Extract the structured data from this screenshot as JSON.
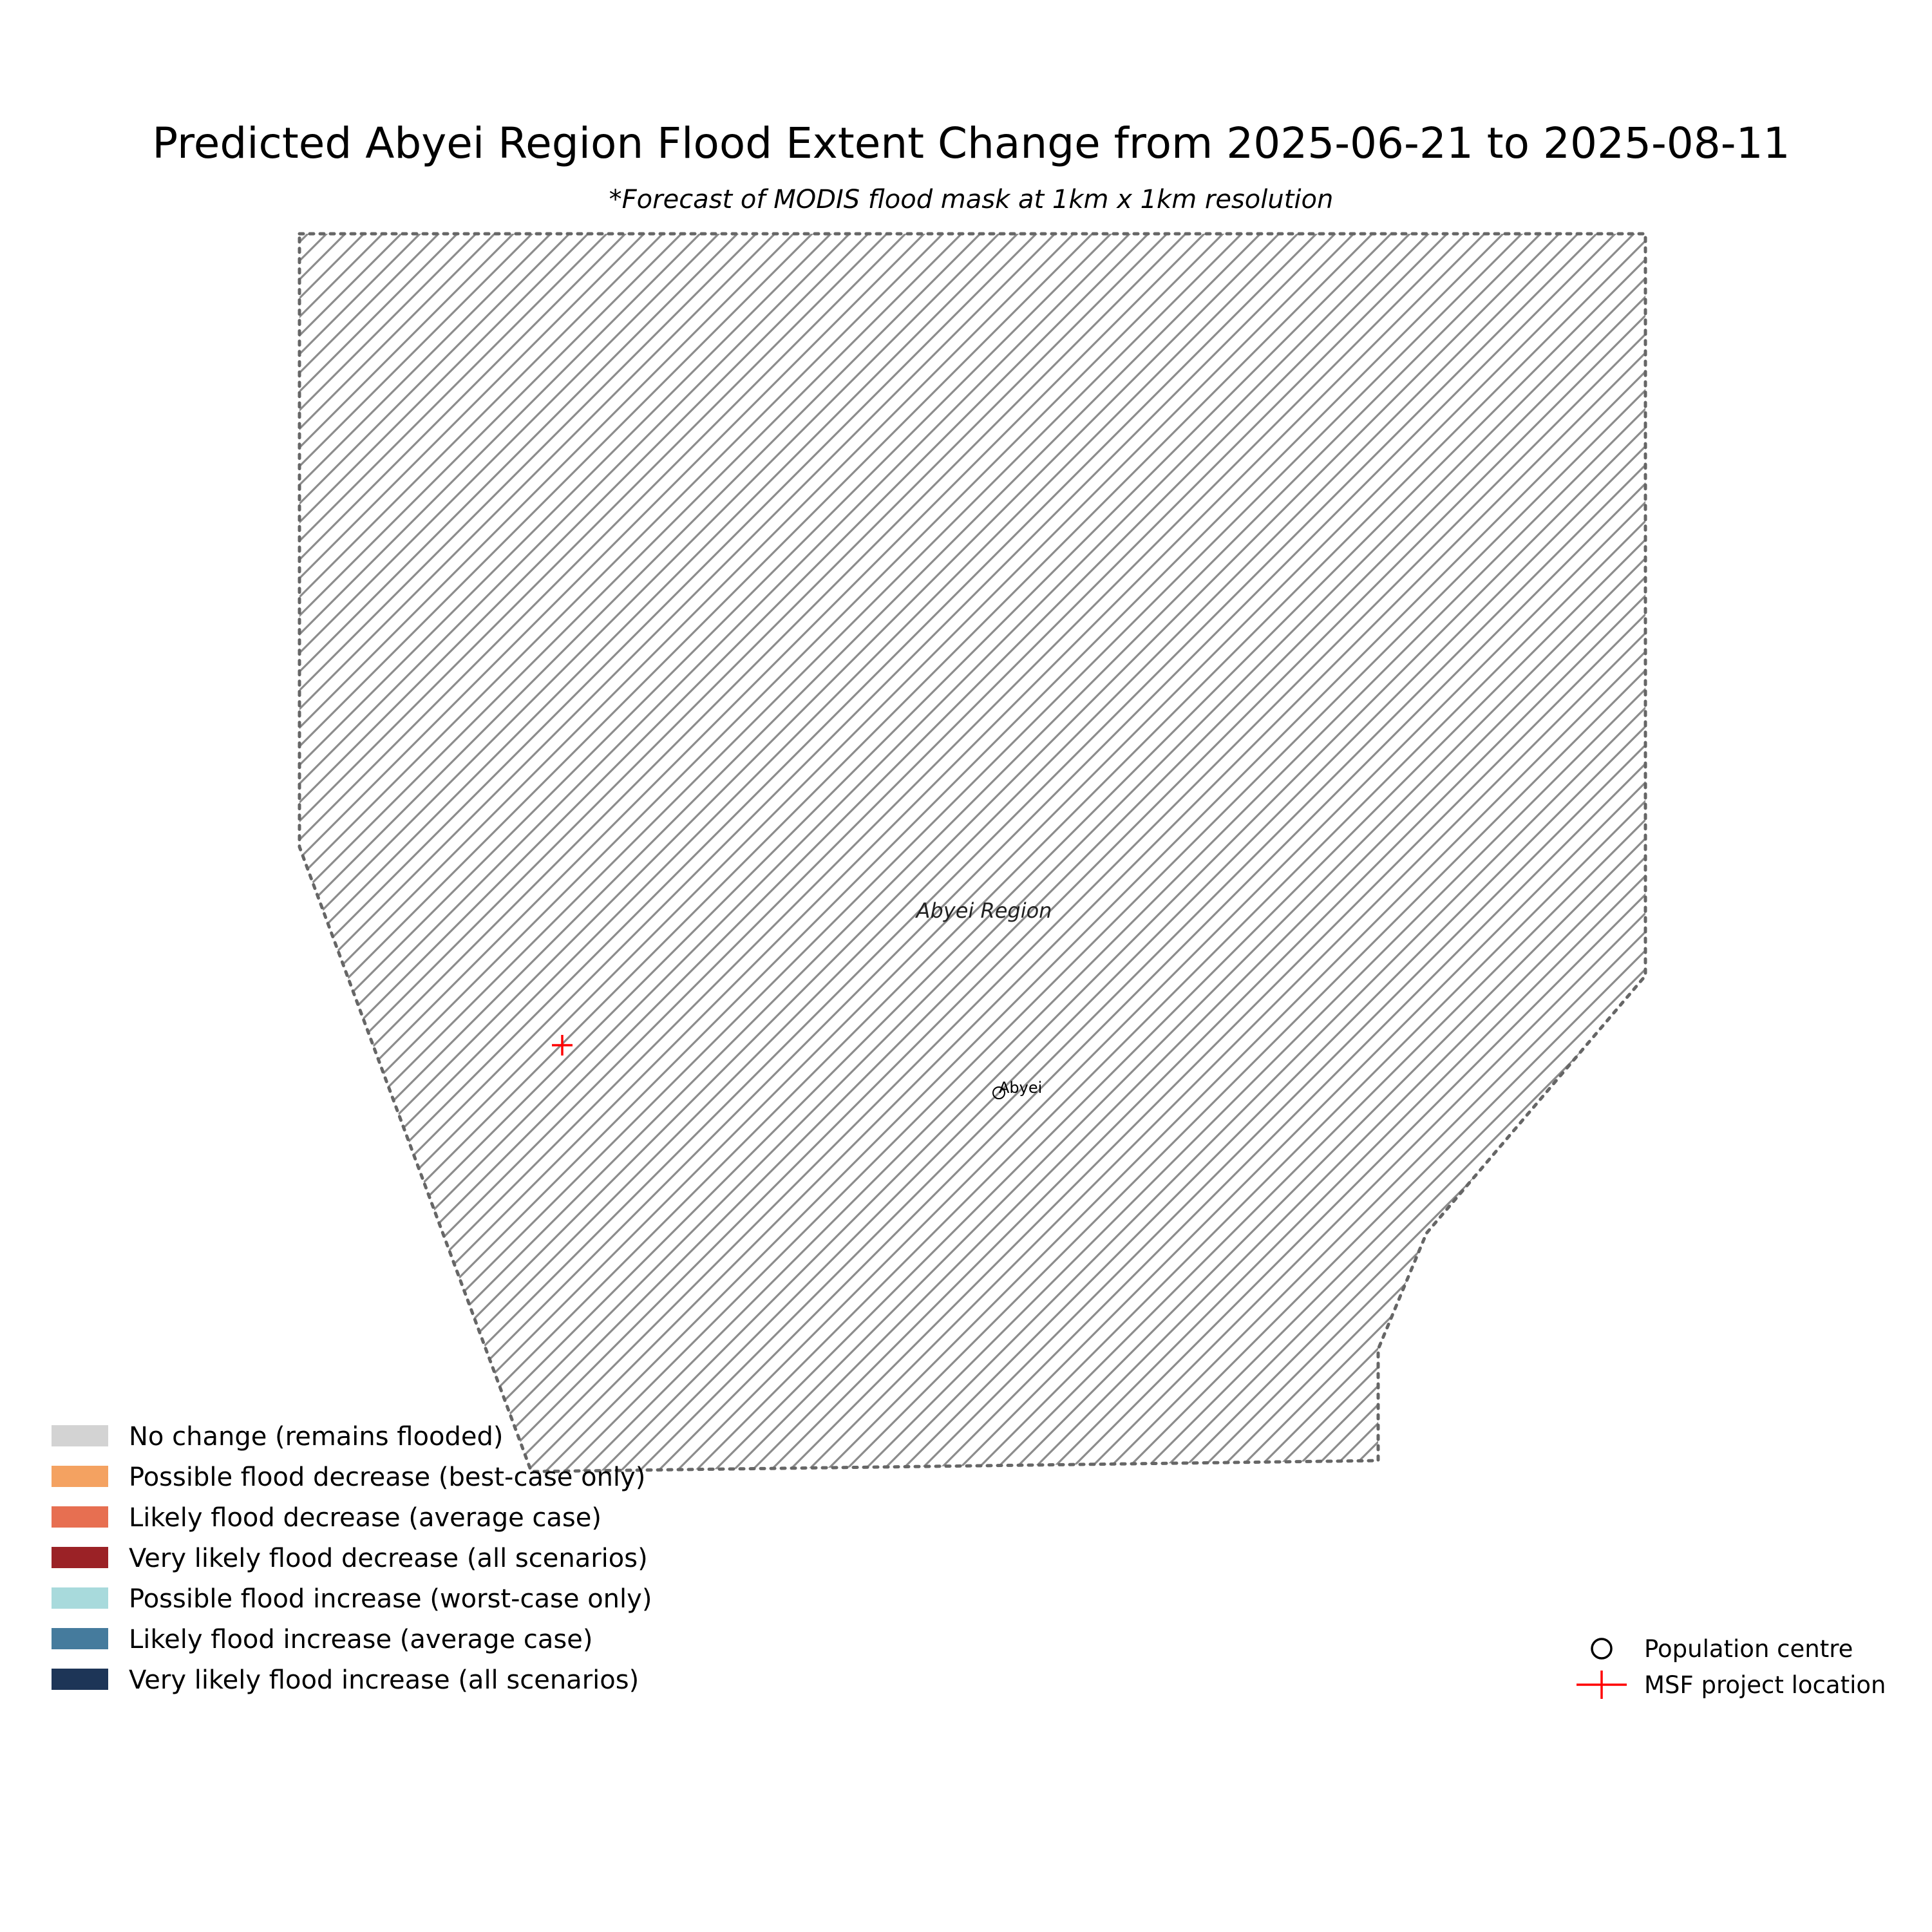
{
  "title": "Predicted Abyei Region Flood Extent Change from 2025-06-21 to 2025-08-11",
  "subtitle": "*Forecast of MODIS flood mask at 1km x 1km resolution",
  "region": {
    "label": "Abyei Region",
    "fill": "hatched",
    "outline_style": "dotted",
    "outline_color": "#666666",
    "hatch_color": "#8c8c8c"
  },
  "population_centres": [
    {
      "name": "Abyei"
    }
  ],
  "msf_project_locations": [
    {
      "marker": "red-cross"
    }
  ],
  "legend_categories": [
    {
      "label": "No change (remains flooded)",
      "color": "#d3d3d3"
    },
    {
      "label": "Possible flood decrease (best-case only)",
      "color": "#f4a261"
    },
    {
      "label": "Likely flood decrease (average case)",
      "color": "#e76f51"
    },
    {
      "label": "Very likely flood decrease (all scenarios)",
      "color": "#9b2226"
    },
    {
      "label": "Possible flood increase (worst-case only)",
      "color": "#a8dadc"
    },
    {
      "label": "Likely flood increase (average case)",
      "color": "#457b9d"
    },
    {
      "label": "Very likely flood increase (all scenarios)",
      "color": "#1d3557"
    }
  ],
  "legend_markers": [
    {
      "label": "Population centre",
      "icon": "circle-icon"
    },
    {
      "label": "MSF project location",
      "icon": "red-cross-icon",
      "color": "#ff0000"
    }
  ]
}
